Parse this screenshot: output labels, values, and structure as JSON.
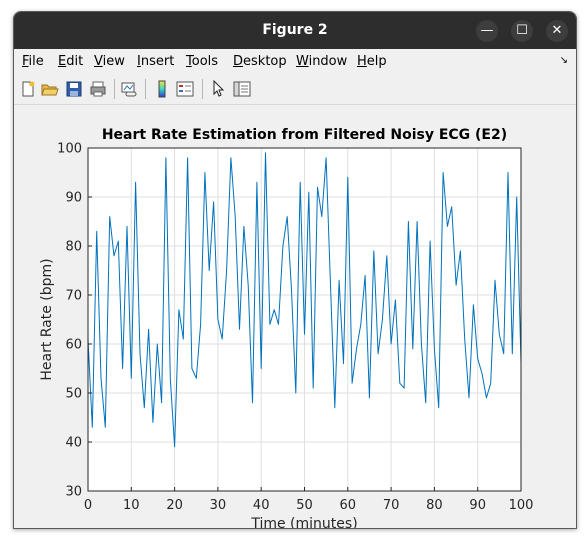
{
  "window": {
    "title": "Figure 2",
    "controls": {
      "minimize": "—",
      "maximize": "☐",
      "close": "✕"
    }
  },
  "menubar": {
    "items": [
      {
        "mnemonic": "F",
        "rest": "ile"
      },
      {
        "mnemonic": "E",
        "rest": "dit"
      },
      {
        "mnemonic": "V",
        "rest": "iew"
      },
      {
        "mnemonic": "I",
        "rest": "nsert"
      },
      {
        "mnemonic": "T",
        "rest": "ools"
      },
      {
        "mnemonic": "D",
        "rest": "esktop"
      },
      {
        "mnemonic": "W",
        "rest": "indow"
      },
      {
        "mnemonic": "H",
        "rest": "elp"
      }
    ],
    "dock_icon": "↘"
  },
  "toolbar": {
    "buttons": [
      "new-figure-icon",
      "open-file-icon",
      "save-icon",
      "print-icon",
      "link-plot-icon",
      "insert-colorbar-icon",
      "insert-legend-icon",
      "edit-plot-icon",
      "property-inspector-icon"
    ]
  },
  "chart_data": {
    "type": "line",
    "title": "Heart Rate Estimation from Filtered Noisy ECG (E2)",
    "xlabel": "Time (minutes)",
    "ylabel": "Heart Rate (bpm)",
    "xlim": [
      0,
      100
    ],
    "ylim": [
      30,
      100
    ],
    "xticks": [
      0,
      10,
      20,
      30,
      40,
      50,
      60,
      70,
      80,
      90,
      100
    ],
    "yticks": [
      30,
      40,
      50,
      60,
      70,
      80,
      90,
      100
    ],
    "grid": true,
    "line_color": "#0072bd",
    "series": [
      {
        "name": "Heart Rate",
        "x": [
          0,
          1,
          2,
          3,
          4,
          5,
          6,
          7,
          8,
          9,
          10,
          11,
          12,
          13,
          14,
          15,
          16,
          17,
          18,
          19,
          20,
          21,
          22,
          23,
          24,
          25,
          26,
          27,
          28,
          29,
          30,
          31,
          32,
          33,
          34,
          35,
          36,
          37,
          38,
          39,
          40,
          41,
          42,
          43,
          44,
          45,
          46,
          47,
          48,
          49,
          50,
          51,
          52,
          53,
          54,
          55,
          56,
          57,
          58,
          59,
          60,
          61,
          62,
          63,
          64,
          65,
          66,
          67,
          68,
          69,
          70,
          71,
          72,
          73,
          74,
          75,
          76,
          77,
          78,
          79,
          80,
          81,
          82,
          83,
          84,
          85,
          86,
          87,
          88,
          89,
          90,
          91,
          92,
          93,
          94,
          95,
          96,
          97,
          98,
          99,
          100
        ],
        "y": [
          61,
          43,
          83,
          53,
          43,
          86,
          78,
          81,
          55,
          84,
          53,
          93,
          58,
          47,
          63,
          44,
          60,
          48,
          98,
          53,
          39,
          67,
          61,
          98,
          55,
          53,
          64,
          95,
          75,
          89,
          65,
          61,
          75,
          98,
          86,
          63,
          84,
          72,
          48,
          93,
          55,
          99,
          64,
          67,
          64,
          80,
          86,
          71,
          50,
          93,
          62,
          91,
          51,
          92,
          86,
          98,
          72,
          47,
          73,
          56,
          94,
          52,
          59,
          64,
          74,
          49,
          79,
          58,
          65,
          78,
          60,
          69,
          52,
          51,
          85,
          59,
          85,
          60,
          48,
          81,
          59,
          47,
          95,
          84,
          88,
          72,
          79,
          61,
          49,
          68,
          57,
          54,
          49,
          52,
          73,
          62,
          58,
          95,
          58,
          90,
          56
        ]
      }
    ]
  }
}
